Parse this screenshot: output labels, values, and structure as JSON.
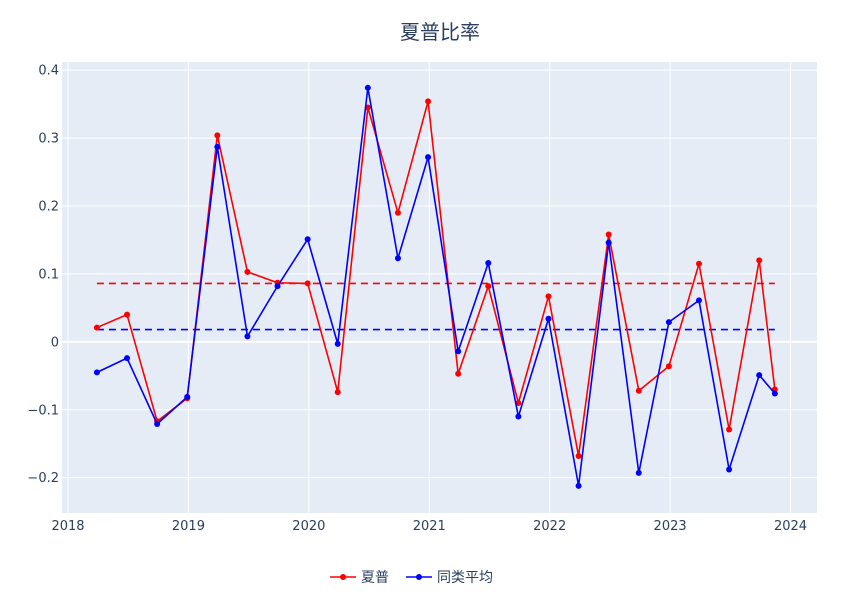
{
  "chart_data": {
    "type": "line",
    "title": "夏普比率",
    "xlabel": "",
    "ylabel": "",
    "xlim": [
      2017.95,
      2024.22
    ],
    "ylim": [
      -0.252,
      0.412
    ],
    "x_ticks": [
      2018,
      2019,
      2020,
      2021,
      2022,
      2023,
      2024
    ],
    "x_tick_labels": [
      "2018",
      "2019",
      "2020",
      "2021",
      "2022",
      "2023",
      "2024"
    ],
    "y_ticks": [
      -0.2,
      -0.1,
      0,
      0.1,
      0.2,
      0.3,
      0.4
    ],
    "y_tick_labels": [
      "−0.2",
      "−0.1",
      "0",
      "0.1",
      "0.2",
      "0.3",
      "0.4"
    ],
    "grid": true,
    "legend_position": "bottom-center",
    "x": [
      2018.24,
      2018.49,
      2018.74,
      2018.99,
      2019.24,
      2019.49,
      2019.74,
      2019.99,
      2020.24,
      2020.49,
      2020.74,
      2020.99,
      2021.24,
      2021.49,
      2021.74,
      2021.99,
      2022.24,
      2022.49,
      2022.74,
      2022.99,
      2023.24,
      2023.49,
      2023.74,
      2023.87
    ],
    "series": [
      {
        "name": "夏普",
        "color": "#ff0000",
        "values": [
          0.021,
          0.04,
          -0.117,
          -0.083,
          0.304,
          0.103,
          0.087,
          0.086,
          -0.074,
          0.345,
          0.19,
          0.354,
          -0.047,
          0.082,
          -0.09,
          0.067,
          -0.168,
          0.158,
          -0.072,
          -0.036,
          0.115,
          -0.129,
          0.12,
          -0.07
        ]
      },
      {
        "name": "同类平均",
        "color": "#0000ff",
        "values": [
          -0.045,
          -0.024,
          -0.121,
          -0.081,
          0.287,
          0.008,
          0.082,
          0.151,
          -0.003,
          0.374,
          0.123,
          0.272,
          -0.014,
          0.116,
          -0.11,
          0.034,
          -0.212,
          0.146,
          -0.193,
          0.029,
          0.061,
          -0.188,
          -0.049,
          -0.076
        ]
      }
    ],
    "reference_lines": [
      {
        "value": 0.086,
        "color": "#ff0000",
        "style": "dashed",
        "x_range": [
          2018.24,
          2023.87
        ]
      },
      {
        "value": 0.018,
        "color": "#0000ff",
        "style": "dashed",
        "x_range": [
          2018.24,
          2023.87
        ]
      }
    ]
  },
  "colors": {
    "plot_background": "#e5ecf6",
    "grid": "#ffffff",
    "text": "#2a3f5f"
  }
}
